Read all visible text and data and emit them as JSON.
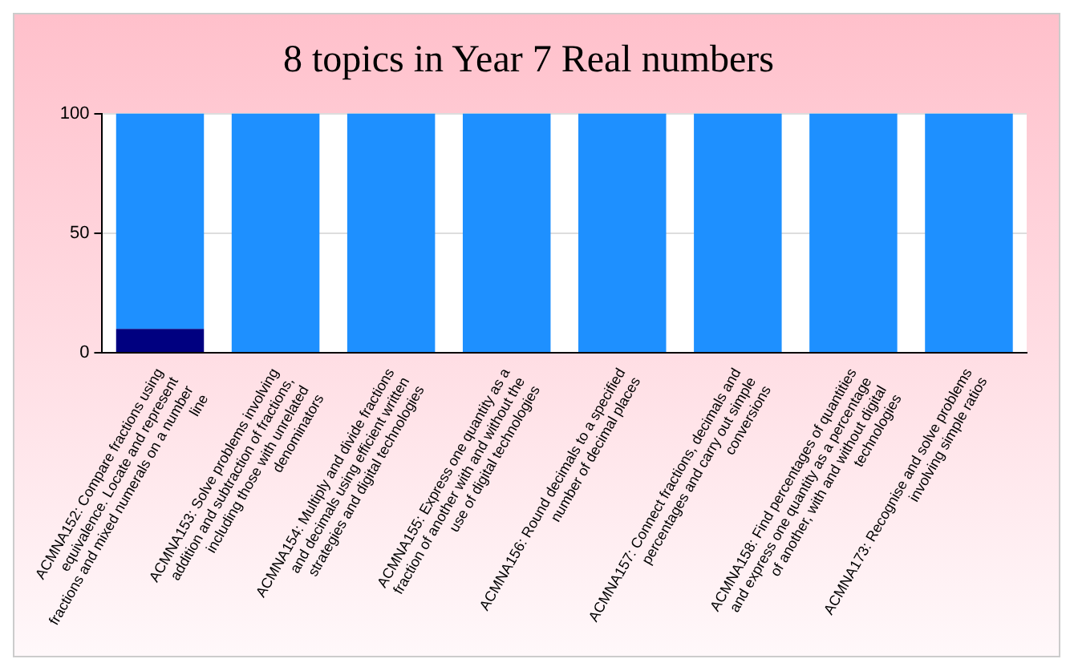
{
  "chart_data": {
    "type": "bar",
    "title": "8 topics in Year 7 Real numbers",
    "categories": [
      "ACMNA152: Compare fractions using equivalence. Locate and represent fractions and mixed numerals on a number line",
      "ACMNA153: Solve problems involving addition and subtraction of fractions, including those with unrelated denominators",
      "ACMNA154: Multiply and divide fractions and decimals using efficient written strategies and digital technologies",
      "ACMNA155: Express one quantity as a fraction of another with and without the use of digital technologies",
      "ACMNA156: Round decimals to a specified number of decimal places",
      "ACMNA157: Connect fractions, decimals and percentages and carry out simple conversions",
      "ACMNA158: Find percentages of quantities and express one quantity as a percentage of another, with and without digital technologies",
      "ACMNA173: Recognise and solve problems involving simple ratios"
    ],
    "series": [
      {
        "color": "#000080",
        "values": [
          10,
          0,
          0,
          0,
          0,
          0,
          0,
          0
        ]
      },
      {
        "color": "#1e90ff",
        "values": [
          90,
          100,
          100,
          100,
          100,
          100,
          100,
          100
        ]
      }
    ],
    "stacked": true,
    "ylim": [
      0,
      100
    ],
    "yticks": [
      0,
      50,
      100
    ],
    "grid": "y",
    "legend": false
  }
}
